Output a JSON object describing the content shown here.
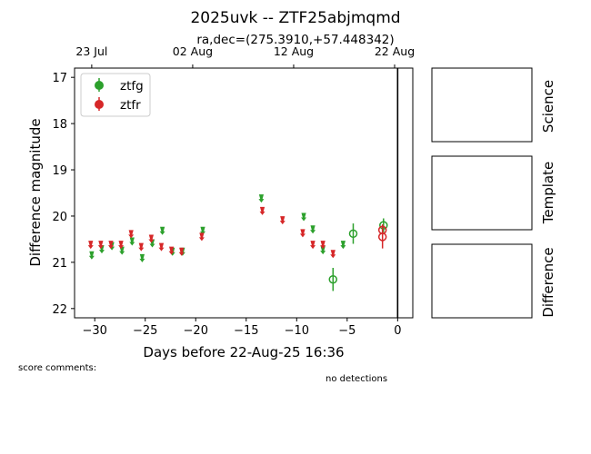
{
  "figure": {
    "title": "2025uvk -- ZTF25abjmqmd",
    "subtitle": "ra,dec=(275.3910,+57.448342)",
    "score_comments_label": "score comments:",
    "no_detections_label": "no detections"
  },
  "cutouts": [
    {
      "label": "Science"
    },
    {
      "label": "Template"
    },
    {
      "label": "Difference"
    }
  ],
  "chart_data": {
    "type": "scatter",
    "xlabel": "Days before 22-Aug-25 16:36",
    "ylabel": "Difference magnitude",
    "xlim": [
      -32,
      1.5
    ],
    "ylim": [
      22.2,
      16.8
    ],
    "y_inverted": true,
    "x_ticks": [
      -30,
      -25,
      -20,
      -15,
      -10,
      -5,
      0
    ],
    "x_tick_labels": [
      "−30",
      "−25",
      "−20",
      "−15",
      "−10",
      "−5",
      "0"
    ],
    "y_ticks": [
      17,
      18,
      19,
      20,
      21,
      22
    ],
    "top_axis_ticks": [
      {
        "x": -30.3,
        "label": "23 Jul"
      },
      {
        "x": -20.3,
        "label": "02 Aug"
      },
      {
        "x": -10.3,
        "label": "12 Aug"
      },
      {
        "x": -0.3,
        "label": "22 Aug"
      }
    ],
    "reference_line_x": 0,
    "legend": {
      "position": "top-left",
      "entries": [
        "ztfg",
        "ztfr"
      ]
    },
    "series": [
      {
        "name": "ztfg",
        "color": "#2ca02c",
        "upper_limits": [
          {
            "x": -30.3,
            "y": 20.88
          },
          {
            "x": -29.3,
            "y": 20.75
          },
          {
            "x": -28.3,
            "y": 20.68
          },
          {
            "x": -27.3,
            "y": 20.78
          },
          {
            "x": -26.3,
            "y": 20.58
          },
          {
            "x": -25.3,
            "y": 20.94
          },
          {
            "x": -24.3,
            "y": 20.62
          },
          {
            "x": -23.3,
            "y": 20.35
          },
          {
            "x": -22.3,
            "y": 20.8
          },
          {
            "x": -21.3,
            "y": 20.8
          },
          {
            "x": -19.3,
            "y": 20.35
          },
          {
            "x": -13.5,
            "y": 19.65
          },
          {
            "x": -9.3,
            "y": 20.05
          },
          {
            "x": -8.4,
            "y": 20.32
          },
          {
            "x": -7.4,
            "y": 20.77
          },
          {
            "x": -5.4,
            "y": 20.65
          }
        ],
        "detections": [
          {
            "x": -6.4,
            "y": 21.37,
            "err": 0.25
          },
          {
            "x": -4.4,
            "y": 20.38,
            "err": 0.22
          },
          {
            "x": -1.4,
            "y": 20.2,
            "err": 0.15
          }
        ]
      },
      {
        "name": "ztfr",
        "color": "#d62728",
        "upper_limits": [
          {
            "x": -30.4,
            "y": 20.65
          },
          {
            "x": -29.4,
            "y": 20.65
          },
          {
            "x": -28.4,
            "y": 20.65
          },
          {
            "x": -27.4,
            "y": 20.65
          },
          {
            "x": -26.4,
            "y": 20.42
          },
          {
            "x": -25.4,
            "y": 20.7
          },
          {
            "x": -24.4,
            "y": 20.52
          },
          {
            "x": -23.4,
            "y": 20.7
          },
          {
            "x": -22.4,
            "y": 20.78
          },
          {
            "x": -21.4,
            "y": 20.8
          },
          {
            "x": -19.4,
            "y": 20.48
          },
          {
            "x": -13.4,
            "y": 19.92
          },
          {
            "x": -11.4,
            "y": 20.12
          },
          {
            "x": -9.4,
            "y": 20.4
          },
          {
            "x": -8.4,
            "y": 20.65
          },
          {
            "x": -7.4,
            "y": 20.65
          },
          {
            "x": -6.4,
            "y": 20.85
          }
        ],
        "detections": [
          {
            "x": -1.5,
            "y": 20.3,
            "err": 0.12
          },
          {
            "x": -1.5,
            "y": 20.45,
            "err": 0.25
          }
        ]
      }
    ]
  }
}
